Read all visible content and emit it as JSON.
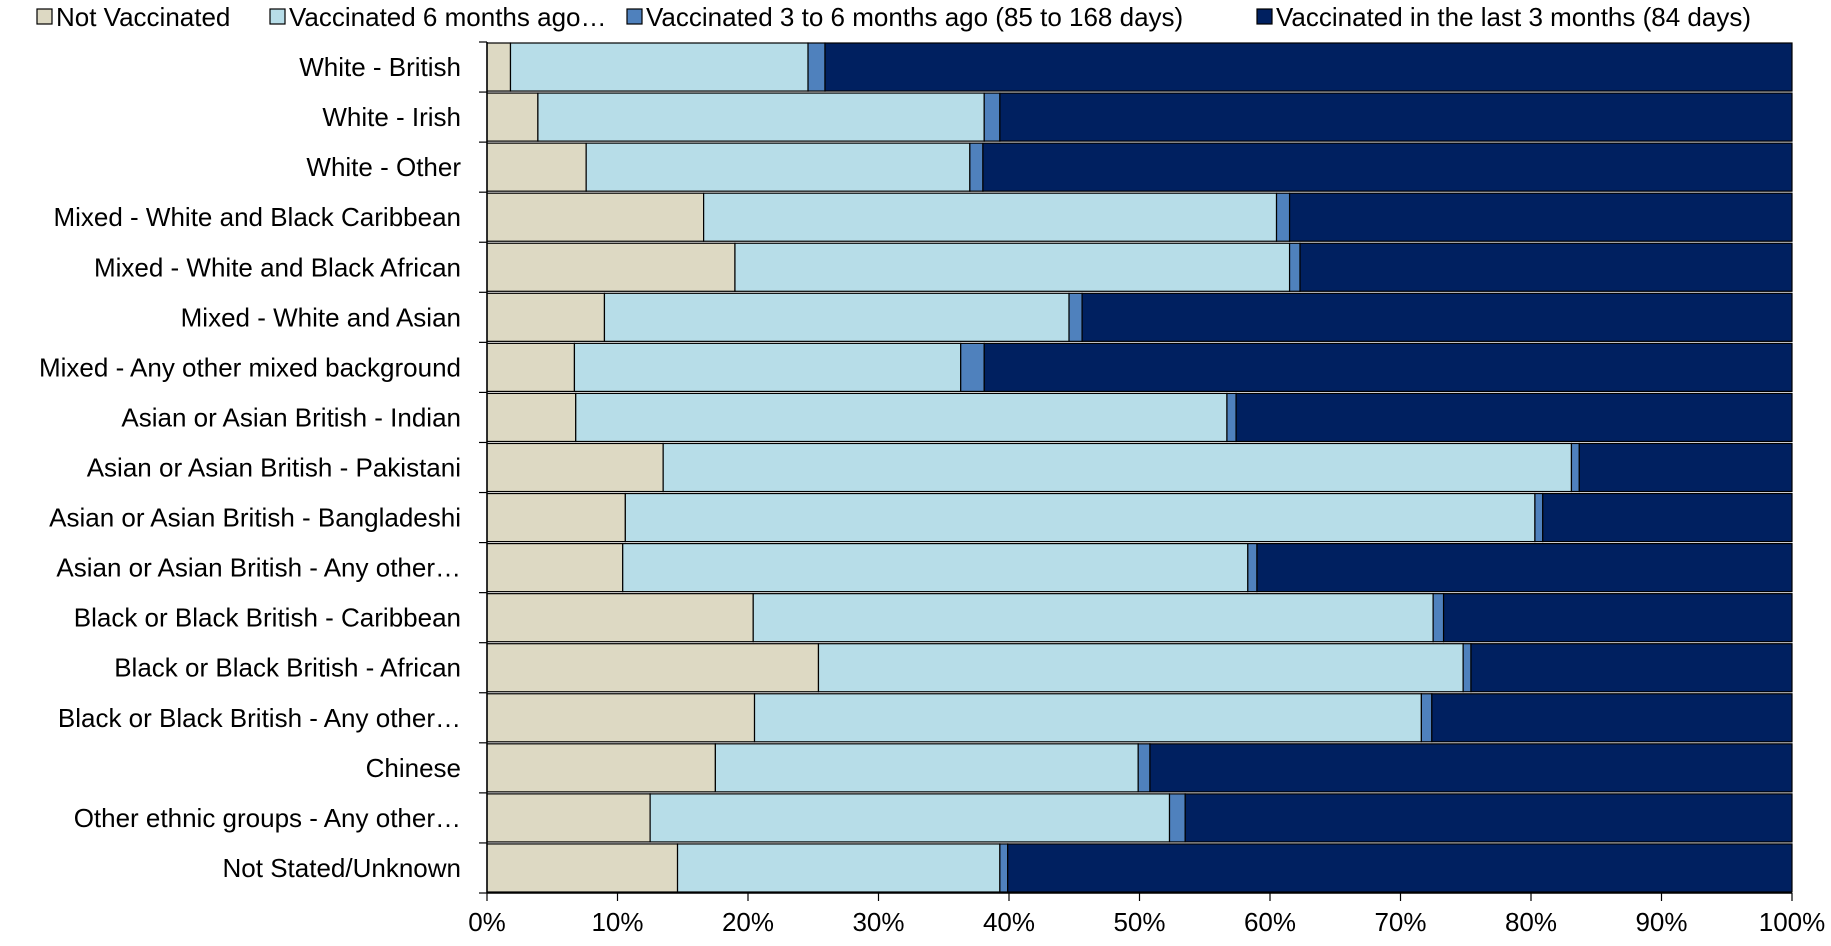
{
  "chart_data": {
    "type": "bar",
    "orientation": "horizontal",
    "stacked": true,
    "categories": [
      "White - British",
      "White - Irish",
      "White - Other",
      "Mixed - White and Black Caribbean",
      "Mixed - White and Black African",
      "Mixed - White and Asian",
      "Mixed - Any other mixed background",
      "Asian or Asian British - Indian",
      "Asian or Asian British - Pakistani",
      "Asian or Asian British - Bangladeshi",
      "Asian or Asian British - Any other…",
      "Black or Black British - Caribbean",
      "Black or Black British - African",
      "Black or Black British - Any other…",
      "Chinese",
      "Other ethnic groups - Any other…",
      "Not Stated/Unknown"
    ],
    "series": [
      {
        "name": "Not Vaccinated",
        "color": "#ddd9c3",
        "values": [
          1.8,
          3.9,
          7.6,
          16.6,
          19.0,
          9.0,
          6.7,
          6.8,
          13.5,
          10.6,
          10.4,
          20.4,
          25.4,
          20.5,
          17.5,
          12.5,
          14.6
        ]
      },
      {
        "name": "Vaccinated 6 months ago…",
        "color": "#b7dde8",
        "values": [
          22.8,
          34.2,
          29.4,
          43.9,
          42.5,
          35.6,
          29.6,
          49.9,
          69.6,
          69.7,
          47.9,
          52.1,
          49.4,
          51.1,
          32.4,
          39.8,
          24.7
        ]
      },
      {
        "name": "Vaccinated 3 to 6 months ago (85 to 168 days)",
        "color": "#4f81bd",
        "values": [
          1.3,
          1.2,
          1.0,
          1.0,
          0.8,
          1.0,
          1.8,
          0.7,
          0.6,
          0.6,
          0.7,
          0.8,
          0.6,
          0.8,
          0.9,
          1.2,
          0.6
        ]
      },
      {
        "name": "Vaccinated in the last 3 months (84 days)",
        "color": "#002060",
        "values": [
          74.1,
          60.7,
          62.0,
          38.5,
          37.7,
          54.4,
          61.9,
          42.6,
          16.3,
          19.1,
          41.0,
          26.7,
          24.6,
          27.6,
          49.2,
          46.5,
          60.1
        ]
      }
    ],
    "x_ticks": [
      "0%",
      "10%",
      "20%",
      "30%",
      "40%",
      "50%",
      "60%",
      "70%",
      "80%",
      "90%",
      "100%"
    ],
    "xlim": [
      0,
      100
    ],
    "legend_position": "top",
    "grid": false
  }
}
